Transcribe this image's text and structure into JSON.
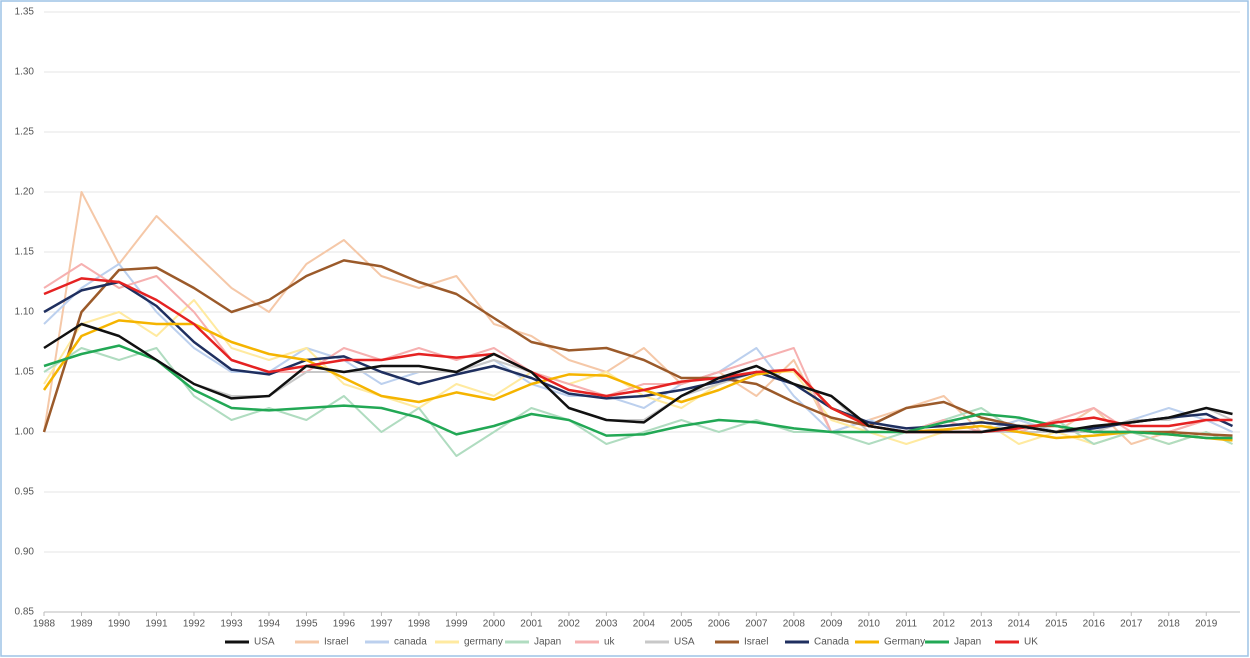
{
  "chart_data": {
    "type": "line",
    "x": [
      1988,
      1989,
      1990,
      1991,
      1992,
      1993,
      1994,
      1995,
      1996,
      1997,
      1998,
      1999,
      2000,
      2001,
      2002,
      2003,
      2004,
      2005,
      2006,
      2007,
      2008,
      2009,
      2010,
      2011,
      2012,
      2013,
      2014,
      2015,
      2016,
      2017,
      2018,
      2019,
      2019.7
    ],
    "xlim": [
      1988,
      2019.9
    ],
    "xticks": [
      1988,
      1989,
      1990,
      1991,
      1992,
      1993,
      1994,
      1995,
      1996,
      1997,
      1998,
      1999,
      2000,
      2001,
      2002,
      2003,
      2004,
      2005,
      2006,
      2007,
      2008,
      2009,
      2010,
      2011,
      2012,
      2013,
      2014,
      2015,
      2016,
      2017,
      2018,
      2019
    ],
    "ylim": [
      0.85,
      1.35
    ],
    "yticks": [
      {
        "value": 0.85,
        "label": "0.85"
      },
      {
        "value": 0.9,
        "label": "0.90"
      },
      {
        "value": 0.95,
        "label": "0.95"
      },
      {
        "value": 1.0,
        "label": "1.00"
      },
      {
        "value": 1.05,
        "label": "1.05"
      },
      {
        "value": 1.1,
        "label": "1.10"
      },
      {
        "value": 1.15,
        "label": "1.15"
      },
      {
        "value": 1.2,
        "label": "1.20"
      },
      {
        "value": 1.25,
        "label": "1.25"
      },
      {
        "value": 1.3,
        "label": "1.30"
      },
      {
        "value": 1.35,
        "label": "1.35"
      }
    ],
    "grid": true,
    "legend": "bottom",
    "series": [
      {
        "name": "Israel",
        "color": "#f5c8a8",
        "width": 2,
        "values": [
          1.0,
          1.2,
          1.14,
          1.18,
          1.15,
          1.12,
          1.1,
          1.14,
          1.16,
          1.13,
          1.12,
          1.13,
          1.09,
          1.08,
          1.06,
          1.05,
          1.07,
          1.04,
          1.05,
          1.03,
          1.06,
          1.0,
          1.01,
          1.02,
          1.03,
          1.0,
          1.01,
          1.0,
          1.02,
          0.99,
          1.0,
          1.01,
          1.0
        ]
      },
      {
        "name": "canada",
        "color": "#bcd0ee",
        "width": 2,
        "values": [
          1.09,
          1.12,
          1.14,
          1.1,
          1.07,
          1.05,
          1.05,
          1.07,
          1.06,
          1.04,
          1.05,
          1.05,
          1.06,
          1.04,
          1.03,
          1.03,
          1.02,
          1.04,
          1.05,
          1.07,
          1.03,
          1.0,
          1.01,
          1.0,
          1.01,
          1.0,
          1.01,
          1.0,
          1.0,
          1.01,
          1.02,
          1.01,
          1.0
        ]
      },
      {
        "name": "germany",
        "color": "#ffeaa0",
        "width": 2,
        "values": [
          1.04,
          1.09,
          1.1,
          1.08,
          1.11,
          1.07,
          1.06,
          1.07,
          1.04,
          1.03,
          1.02,
          1.04,
          1.03,
          1.05,
          1.04,
          1.05,
          1.03,
          1.02,
          1.04,
          1.05,
          1.05,
          1.01,
          1.0,
          0.99,
          1.0,
          1.01,
          0.99,
          1.0,
          0.99,
          1.0,
          0.99,
          1.0,
          0.99
        ]
      },
      {
        "name": "Japan",
        "color": "#b0dcc0",
        "width": 2,
        "values": [
          1.05,
          1.07,
          1.06,
          1.07,
          1.03,
          1.01,
          1.02,
          1.01,
          1.03,
          1.0,
          1.02,
          0.98,
          1.0,
          1.02,
          1.01,
          0.99,
          1.0,
          1.01,
          1.0,
          1.01,
          1.0,
          1.0,
          0.99,
          1.0,
          1.01,
          1.02,
          1.0,
          1.01,
          0.99,
          1.0,
          0.99,
          1.0,
          0.99
        ]
      },
      {
        "name": "uk",
        "color": "#f6b0b0",
        "width": 2,
        "values": [
          1.12,
          1.14,
          1.12,
          1.13,
          1.1,
          1.06,
          1.05,
          1.05,
          1.07,
          1.06,
          1.07,
          1.06,
          1.07,
          1.05,
          1.04,
          1.03,
          1.04,
          1.04,
          1.05,
          1.06,
          1.07,
          1.0,
          1.0,
          1.0,
          1.01,
          1.0,
          1.0,
          1.01,
          1.02,
          1.0,
          1.0,
          1.01,
          1.01
        ]
      },
      {
        "name": "USA",
        "color": "#c8c8c8",
        "width": 2,
        "values": [
          1.07,
          1.09,
          1.08,
          1.06,
          1.04,
          1.03,
          1.03,
          1.05,
          1.05,
          1.05,
          1.05,
          1.05,
          1.06,
          1.05,
          1.02,
          1.01,
          1.01,
          1.03,
          1.04,
          1.05,
          1.04,
          1.03,
          1.0,
          1.0,
          1.0,
          1.0,
          1.0,
          1.0,
          1.0,
          1.01,
          1.01,
          1.02,
          1.01
        ]
      },
      {
        "name": "Israel",
        "color": "#9b5a2a",
        "width": 2.5,
        "values": [
          1.0,
          1.1,
          1.135,
          1.137,
          1.12,
          1.1,
          1.11,
          1.13,
          1.143,
          1.138,
          1.125,
          1.115,
          1.095,
          1.075,
          1.068,
          1.07,
          1.06,
          1.045,
          1.045,
          1.04,
          1.025,
          1.012,
          1.005,
          1.02,
          1.025,
          1.012,
          1.005,
          1.005,
          1.0,
          1.0,
          1.0,
          0.998,
          0.997
        ]
      },
      {
        "name": "Canada",
        "color": "#1f2f5f",
        "width": 2.5,
        "values": [
          1.1,
          1.118,
          1.125,
          1.105,
          1.075,
          1.052,
          1.048,
          1.06,
          1.063,
          1.05,
          1.04,
          1.048,
          1.055,
          1.045,
          1.032,
          1.028,
          1.03,
          1.035,
          1.042,
          1.05,
          1.04,
          1.02,
          1.008,
          1.003,
          1.005,
          1.008,
          1.005,
          1.0,
          1.003,
          1.008,
          1.012,
          1.015,
          1.005
        ]
      },
      {
        "name": "Germany",
        "color": "#f5b400",
        "width": 2.5,
        "values": [
          1.035,
          1.08,
          1.093,
          1.09,
          1.09,
          1.075,
          1.065,
          1.06,
          1.045,
          1.03,
          1.025,
          1.033,
          1.027,
          1.04,
          1.048,
          1.047,
          1.035,
          1.025,
          1.035,
          1.048,
          1.052,
          1.02,
          1.005,
          1.0,
          1.002,
          1.005,
          1.0,
          0.995,
          0.997,
          1.0,
          0.998,
          0.995,
          0.993
        ]
      },
      {
        "name": "Japan",
        "color": "#22a855",
        "width": 2.5,
        "values": [
          1.055,
          1.065,
          1.072,
          1.06,
          1.035,
          1.02,
          1.018,
          1.02,
          1.022,
          1.02,
          1.012,
          0.998,
          1.005,
          1.015,
          1.01,
          0.997,
          0.998,
          1.005,
          1.01,
          1.008,
          1.003,
          1.0,
          1.0,
          1.0,
          1.008,
          1.015,
          1.012,
          1.005,
          1.0,
          1.0,
          0.998,
          0.995,
          0.995
        ]
      },
      {
        "name": "UK",
        "color": "#e52222",
        "width": 2.5,
        "values": [
          1.115,
          1.128,
          1.125,
          1.11,
          1.09,
          1.06,
          1.05,
          1.055,
          1.06,
          1.06,
          1.065,
          1.062,
          1.065,
          1.05,
          1.035,
          1.03,
          1.035,
          1.042,
          1.045,
          1.05,
          1.052,
          1.02,
          1.005,
          1.0,
          1.0,
          1.0,
          1.003,
          1.008,
          1.012,
          1.005,
          1.005,
          1.01,
          1.01
        ]
      },
      {
        "name": "USA",
        "color": "#111111",
        "width": 2.5,
        "values": [
          1.07,
          1.09,
          1.08,
          1.06,
          1.04,
          1.028,
          1.03,
          1.055,
          1.05,
          1.055,
          1.055,
          1.05,
          1.065,
          1.05,
          1.02,
          1.01,
          1.008,
          1.03,
          1.045,
          1.055,
          1.04,
          1.03,
          1.005,
          1.0,
          1.0,
          1.0,
          1.005,
          1.0,
          1.005,
          1.008,
          1.012,
          1.02,
          1.015
        ]
      }
    ],
    "legend_order": [
      11,
      0,
      1,
      2,
      3,
      4,
      5,
      6,
      7,
      8,
      9,
      10
    ]
  }
}
